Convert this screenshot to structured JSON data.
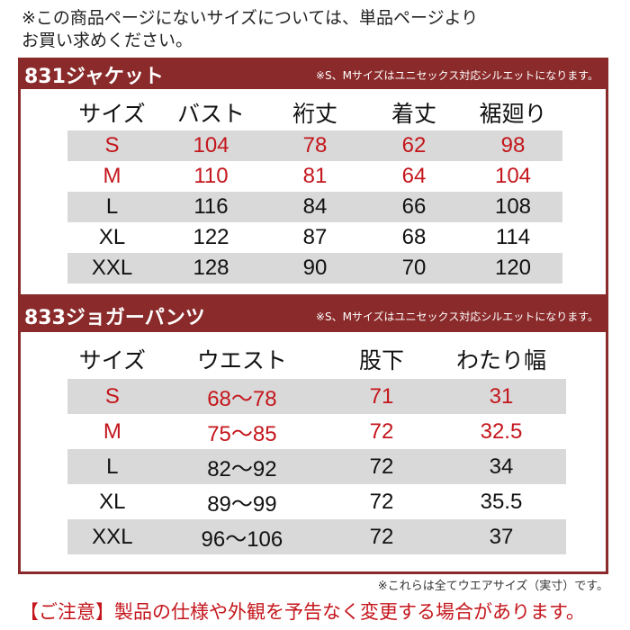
{
  "intro": [
    "※この商品ページにないサイズについては、単品ページより",
    "お買い求めください。"
  ],
  "jacket": {
    "title": "831ジャケット",
    "note": "※S、Mサイズはユニセックス対応シルエットになります。",
    "headers": [
      "サイズ",
      "バスト",
      "裄丈",
      "着丈",
      "裾廻り"
    ],
    "rows": [
      [
        "S",
        "104",
        "78",
        "62",
        "98"
      ],
      [
        "M",
        "110",
        "81",
        "64",
        "104"
      ],
      [
        "L",
        "116",
        "84",
        "66",
        "108"
      ],
      [
        "XL",
        "122",
        "87",
        "68",
        "114"
      ],
      [
        "XXL",
        "128",
        "90",
        "70",
        "120"
      ]
    ]
  },
  "pants": {
    "title": "833ジョガーパンツ",
    "note": "※S、Mサイズはユニセックス対応シルエットになります。",
    "headers": [
      "サイズ",
      "ウエスト",
      "股下",
      "わたり幅"
    ],
    "rows": [
      [
        "S",
        "68〜78",
        "71",
        "31"
      ],
      [
        "M",
        "75〜85",
        "72",
        "32.5"
      ],
      [
        "L",
        "82〜92",
        "72",
        "34"
      ],
      [
        "XL",
        "89〜99",
        "72",
        "35.5"
      ],
      [
        "XXL",
        "96〜106",
        "72",
        "37"
      ]
    ]
  },
  "footnote": "※これらは全てウエアサイズ（実寸）です。",
  "notice": "【ご注意】製品の仕様や外観を予告なく変更する場合があります。",
  "colors": {
    "header_bar": "#8a2a2a",
    "highlight_text": "#c4161c",
    "row_shade": "#d9d9d9"
  }
}
